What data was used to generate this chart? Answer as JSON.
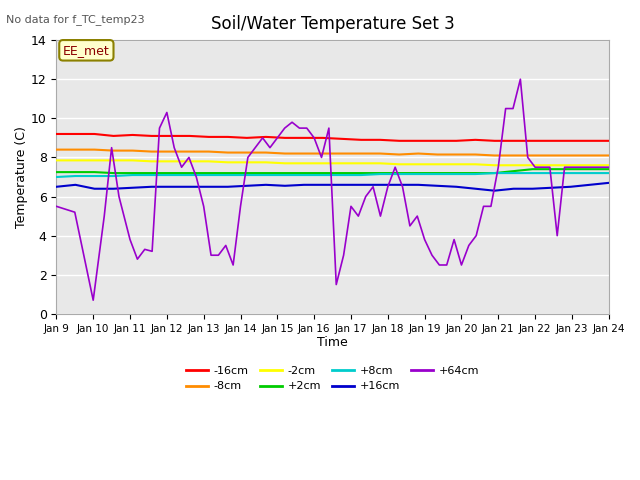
{
  "title": "Soil/Water Temperature Set 3",
  "xlabel": "Time",
  "ylabel": "Temperature (C)",
  "no_data_label": "No data for f_TC_temp23",
  "station_label": "EE_met",
  "ylim": [
    0,
    14
  ],
  "xlim": [
    0,
    15
  ],
  "x_tick_labels": [
    "Jan 9",
    "Jan 10",
    "Jan 11",
    "Jan 12",
    "Jan 13",
    "Jan 14",
    "Jan 15",
    "Jan 16",
    "Jan 17",
    "Jan 18",
    "Jan 19",
    "Jan 20",
    "Jan 21",
    "Jan 22",
    "Jan 23",
    "Jan 24"
  ],
  "background_color": "#e8e8e8",
  "legend_entries": [
    "-16cm",
    "-8cm",
    "-2cm",
    "+2cm",
    "+8cm",
    "+16cm",
    "+64cm"
  ],
  "legend_colors": [
    "#ff0000",
    "#ff8c00",
    "#ffff00",
    "#00cc00",
    "#00cccc",
    "#0000cc",
    "#9900cc"
  ],
  "series": {
    "-16cm": {
      "color": "#ff0000",
      "values": [
        9.2,
        9.2,
        9.2,
        9.1,
        9.15,
        9.1,
        9.1,
        9.1,
        9.05,
        9.05,
        9.0,
        9.05,
        9.0,
        9.0,
        9.0,
        8.95,
        8.9,
        8.9,
        8.85,
        8.85,
        8.85,
        8.85,
        8.9,
        8.85,
        8.85,
        8.85,
        8.85,
        8.85,
        8.85,
        8.85
      ]
    },
    "-8cm": {
      "color": "#ff8c00",
      "values": [
        8.4,
        8.4,
        8.4,
        8.35,
        8.35,
        8.3,
        8.3,
        8.3,
        8.3,
        8.25,
        8.25,
        8.25,
        8.2,
        8.2,
        8.2,
        8.2,
        8.2,
        8.2,
        8.15,
        8.2,
        8.15,
        8.15,
        8.15,
        8.1,
        8.1,
        8.1,
        8.1,
        8.1,
        8.1,
        8.1
      ]
    },
    "-2cm": {
      "color": "#ffff00",
      "values": [
        7.85,
        7.85,
        7.85,
        7.85,
        7.85,
        7.8,
        7.8,
        7.8,
        7.8,
        7.75,
        7.75,
        7.75,
        7.7,
        7.7,
        7.7,
        7.7,
        7.7,
        7.7,
        7.65,
        7.65,
        7.65,
        7.65,
        7.65,
        7.6,
        7.6,
        7.6,
        7.6,
        7.6,
        7.6,
        7.6
      ]
    },
    "+2cm": {
      "color": "#00cc00",
      "values": [
        7.25,
        7.25,
        7.25,
        7.2,
        7.2,
        7.2,
        7.2,
        7.2,
        7.2,
        7.2,
        7.2,
        7.2,
        7.2,
        7.2,
        7.2,
        7.2,
        7.2,
        7.2,
        7.2,
        7.2,
        7.2,
        7.2,
        7.2,
        7.2,
        7.3,
        7.4,
        7.4,
        7.4,
        7.4,
        7.4
      ]
    },
    "+8cm": {
      "color": "#00cccc",
      "values": [
        7.0,
        7.05,
        7.05,
        7.05,
        7.1,
        7.1,
        7.1,
        7.1,
        7.1,
        7.1,
        7.1,
        7.1,
        7.1,
        7.1,
        7.1,
        7.1,
        7.1,
        7.15,
        7.15,
        7.15,
        7.15,
        7.15,
        7.15,
        7.2,
        7.2,
        7.2,
        7.2,
        7.2,
        7.2,
        7.2
      ]
    },
    "+16cm": {
      "color": "#0000cc",
      "values": [
        6.5,
        6.6,
        6.4,
        6.4,
        6.45,
        6.5,
        6.5,
        6.5,
        6.5,
        6.5,
        6.55,
        6.6,
        6.55,
        6.6,
        6.6,
        6.6,
        6.6,
        6.6,
        6.6,
        6.6,
        6.55,
        6.5,
        6.4,
        6.3,
        6.4,
        6.4,
        6.45,
        6.5,
        6.6,
        6.7
      ]
    },
    "+64cm": {
      "color": "#9900cc",
      "x_sparse": [
        0.0,
        0.5,
        1.0,
        1.3,
        1.5,
        1.7,
        2.0,
        2.2,
        2.4,
        2.6,
        2.8,
        3.0,
        3.2,
        3.4,
        3.6,
        3.8,
        4.0,
        4.2,
        4.4,
        4.6,
        4.8,
        5.0,
        5.2,
        5.4,
        5.6,
        5.8,
        6.0,
        6.2,
        6.4,
        6.6,
        6.8,
        7.0,
        7.2,
        7.4,
        7.6,
        7.8,
        8.0,
        8.2,
        8.4,
        8.6,
        8.8,
        9.0,
        9.2,
        9.4,
        9.6,
        9.8,
        10.0,
        10.2,
        10.4,
        10.6,
        10.8,
        11.0,
        11.2,
        11.4,
        11.6,
        11.8,
        12.0,
        12.2,
        12.4,
        12.6,
        12.8,
        13.0,
        13.2,
        13.4,
        13.6,
        13.8,
        14.0,
        14.2,
        14.4,
        14.6,
        14.8,
        15.0
      ],
      "y_sparse": [
        5.5,
        5.2,
        0.7,
        5.0,
        8.5,
        6.0,
        3.8,
        2.8,
        3.3,
        3.2,
        9.5,
        10.3,
        8.5,
        7.5,
        8.0,
        7.0,
        5.5,
        3.0,
        3.0,
        3.5,
        2.5,
        5.5,
        8.0,
        8.5,
        9.0,
        8.5,
        9.0,
        9.5,
        9.8,
        9.5,
        9.5,
        9.0,
        8.0,
        9.5,
        1.5,
        3.0,
        5.5,
        5.0,
        6.0,
        6.5,
        5.0,
        6.5,
        7.5,
        6.5,
        4.5,
        5.0,
        3.8,
        3.0,
        2.5,
        2.5,
        3.8,
        2.5,
        3.5,
        4.0,
        5.5,
        5.5,
        7.5,
        10.5,
        10.5,
        12.0,
        8.0,
        7.5,
        7.5,
        7.5,
        4.0,
        7.5,
        7.5,
        7.5,
        7.5,
        7.5,
        7.5,
        7.5
      ]
    }
  }
}
